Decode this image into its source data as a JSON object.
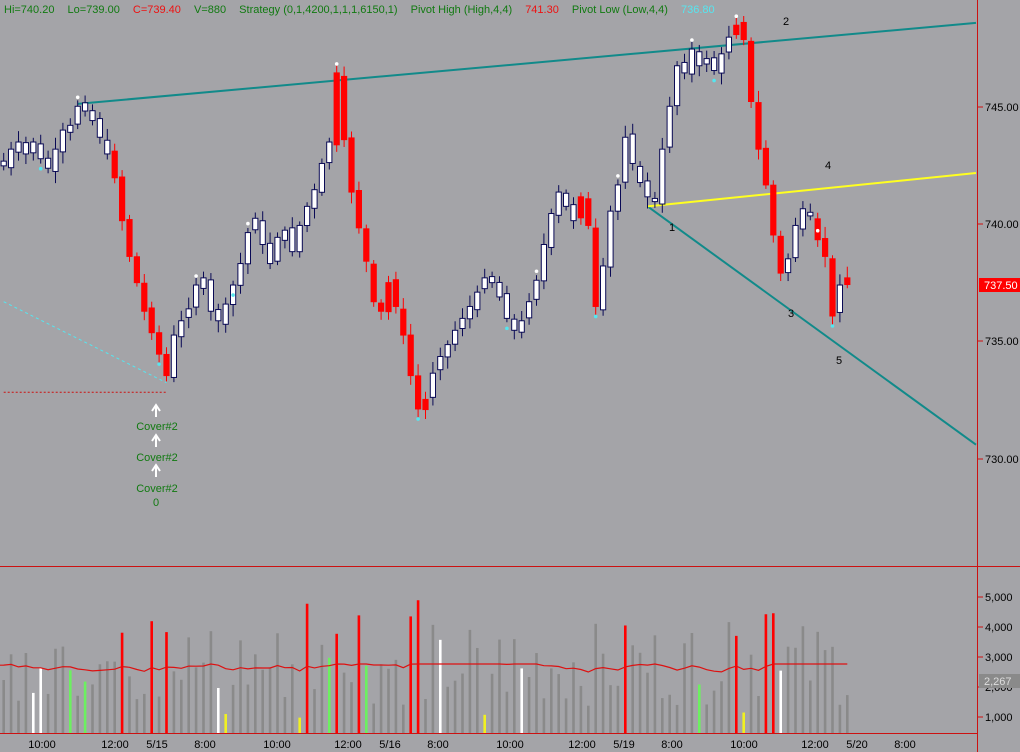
{
  "header": {
    "hi": "Hi=740.20",
    "lo": "Lo=739.00",
    "close": "C=739.40",
    "volume": "V=880",
    "strategy": "Strategy (0,1,4200,1,1,1,6150,1)",
    "pivot_high_label": "Pivot High (High,4,4)",
    "pivot_high_value": "741.30",
    "pivot_low_label": "Pivot Low (Low,4,4)",
    "pivot_low_value": "736.80"
  },
  "colors": {
    "background": "#a4a4a8",
    "candle_outline": "#0a0a55",
    "bear_candle": "#ff0000",
    "bull_volume": "#6cf060",
    "neutral_volume": "#8a8a8a",
    "trendline": "#118a8a",
    "yellow_line": "#ffff20",
    "moving_average": "#dd1111",
    "current_price_badge": "#ff0000"
  },
  "price_axis": {
    "ticks": [
      "745.00",
      "740.00",
      "735.00",
      "730.00"
    ],
    "current_price": "737.50"
  },
  "volume_axis": {
    "ticks": [
      "5,000",
      "4,000",
      "3,000",
      "2,000",
      "1,000"
    ],
    "current_avg": "2,267"
  },
  "time_axis": {
    "labels": [
      "10:00",
      "12:00",
      "5/15",
      "8:00",
      "10:00",
      "12:00",
      "5/16",
      "8:00",
      "10:00",
      "12:00",
      "5/19",
      "8:00",
      "10:00",
      "12:00",
      "5/20",
      "8:00"
    ]
  },
  "annotations": [
    "1",
    "2",
    "3",
    "4",
    "5"
  ],
  "signals": {
    "labels": [
      "Cover#2",
      "Cover#2",
      "Cover#2"
    ],
    "zero": "0"
  },
  "chart_data": {
    "type": "candlestick",
    "y_range": [
      725.2,
      749.2
    ],
    "price_ticks": [
      745,
      740,
      735,
      730
    ],
    "current_price": 737.5,
    "pivot_high": 741.3,
    "pivot_low": 736.8,
    "volume_range": [
      0,
      5700
    ],
    "volume_ticks": [
      5000,
      4000,
      3000,
      2000,
      1000
    ],
    "ma_current": 2267,
    "time_labels": [
      "10:00",
      "12:00",
      "5/15",
      "8:00",
      "10:00",
      "12:00",
      "5/16",
      "8:00",
      "10:00",
      "12:00",
      "5/19",
      "8:00",
      "10:00",
      "12:00",
      "5/20",
      "8:00"
    ],
    "price_path": [
      [
        0,
        742.3
      ],
      [
        1,
        743.0
      ],
      [
        2,
        743.3
      ],
      [
        3,
        742.8
      ],
      [
        4,
        743.3
      ],
      [
        5,
        742.6
      ],
      [
        6,
        742.2
      ],
      [
        7,
        743.0
      ],
      [
        8,
        743.8
      ],
      [
        9,
        744.0
      ],
      [
        10,
        744.8
      ],
      [
        11,
        744.6
      ],
      [
        12,
        744.2
      ],
      [
        13,
        743.5
      ],
      [
        14,
        742.8
      ],
      [
        15,
        741.8
      ],
      [
        16,
        740.0
      ],
      [
        17,
        738.5
      ],
      [
        18,
        737.4
      ],
      [
        19,
        736.2
      ],
      [
        20,
        735.3
      ],
      [
        21,
        734.4
      ],
      [
        22,
        733.5
      ],
      [
        23,
        735.2
      ],
      [
        24,
        735.8
      ],
      [
        25,
        736.3
      ],
      [
        26,
        737.3
      ],
      [
        27,
        737.6
      ],
      [
        28,
        736.2
      ],
      [
        29,
        735.8
      ],
      [
        30,
        736.5
      ],
      [
        31,
        737.3
      ],
      [
        32,
        738.2
      ],
      [
        33,
        739.5
      ],
      [
        34,
        740.1
      ],
      [
        35,
        739.0
      ],
      [
        36,
        738.2
      ],
      [
        37,
        739.3
      ],
      [
        38,
        739.6
      ],
      [
        39,
        738.7
      ],
      [
        40,
        739.8
      ],
      [
        41,
        740.6
      ],
      [
        42,
        741.3
      ],
      [
        43,
        742.4
      ],
      [
        44,
        743.3
      ],
      [
        45,
        746.2
      ],
      [
        46,
        743.4
      ],
      [
        47,
        741.2
      ],
      [
        48,
        739.7
      ],
      [
        49,
        738.3
      ],
      [
        50,
        736.6
      ],
      [
        51,
        736.2
      ],
      [
        52,
        737.4
      ],
      [
        53,
        736.4
      ],
      [
        54,
        735.2
      ],
      [
        55,
        733.5
      ],
      [
        56,
        732.1
      ],
      [
        57,
        732.5
      ],
      [
        58,
        733.6
      ],
      [
        59,
        734.3
      ],
      [
        60,
        734.8
      ],
      [
        61,
        735.4
      ],
      [
        62,
        735.9
      ],
      [
        63,
        736.4
      ],
      [
        64,
        737.0
      ],
      [
        65,
        737.6
      ],
      [
        66,
        737.4
      ],
      [
        67,
        736.8
      ],
      [
        68,
        735.9
      ],
      [
        69,
        735.4
      ],
      [
        70,
        735.8
      ],
      [
        71,
        736.6
      ],
      [
        72,
        737.5
      ],
      [
        73,
        739.0
      ],
      [
        74,
        740.3
      ],
      [
        75,
        741.2
      ],
      [
        76,
        740.6
      ],
      [
        77,
        740.0
      ],
      [
        78,
        741.0
      ],
      [
        79,
        739.8
      ],
      [
        80,
        736.4
      ],
      [
        81,
        738.1
      ],
      [
        82,
        740.4
      ],
      [
        83,
        741.5
      ],
      [
        84,
        743.5
      ],
      [
        85,
        742.4
      ],
      [
        86,
        741.6
      ],
      [
        87,
        741.0
      ],
      [
        88,
        740.8
      ],
      [
        89,
        743.0
      ],
      [
        90,
        744.8
      ],
      [
        91,
        746.5
      ],
      [
        92,
        746.2
      ],
      [
        93,
        747.2
      ],
      [
        94,
        746.5
      ],
      [
        95,
        746.8
      ],
      [
        96,
        746.3
      ],
      [
        97,
        747.0
      ],
      [
        98,
        747.7
      ],
      [
        99,
        748.2
      ],
      [
        100,
        747.6
      ],
      [
        101,
        745.0
      ],
      [
        102,
        743.0
      ],
      [
        103,
        741.5
      ],
      [
        104,
        739.4
      ],
      [
        105,
        737.8
      ],
      [
        106,
        738.4
      ],
      [
        107,
        739.8
      ],
      [
        108,
        740.5
      ],
      [
        109,
        740.2
      ],
      [
        110,
        739.2
      ],
      [
        111,
        738.5
      ],
      [
        112,
        736.0
      ],
      [
        113,
        737.3
      ],
      [
        114,
        737.6
      ]
    ],
    "bear_ranges": [
      [
        15,
        22
      ],
      [
        45,
        57
      ],
      [
        78,
        80
      ],
      [
        99,
        105
      ],
      [
        110,
        112
      ],
      [
        114,
        114
      ]
    ],
    "lines": [
      {
        "name": "upper-trendline",
        "from": [
          10,
          744.9
        ],
        "to": [
          138,
          748.3
        ]
      },
      {
        "name": "lower-trendline",
        "from": [
          87,
          740.6
        ],
        "to": [
          138,
          730.6
        ]
      },
      {
        "name": "yellow-line",
        "from": [
          87,
          740.6
        ],
        "to": [
          138,
          742.0
        ]
      },
      {
        "name": "cyan-dashed-line",
        "from": [
          0,
          736.6
        ],
        "to": [
          22,
          733.2
        ]
      },
      {
        "name": "red-dotted-line",
        "from": [
          0,
          732.8
        ],
        "to": [
          22,
          732.8
        ]
      }
    ]
  }
}
